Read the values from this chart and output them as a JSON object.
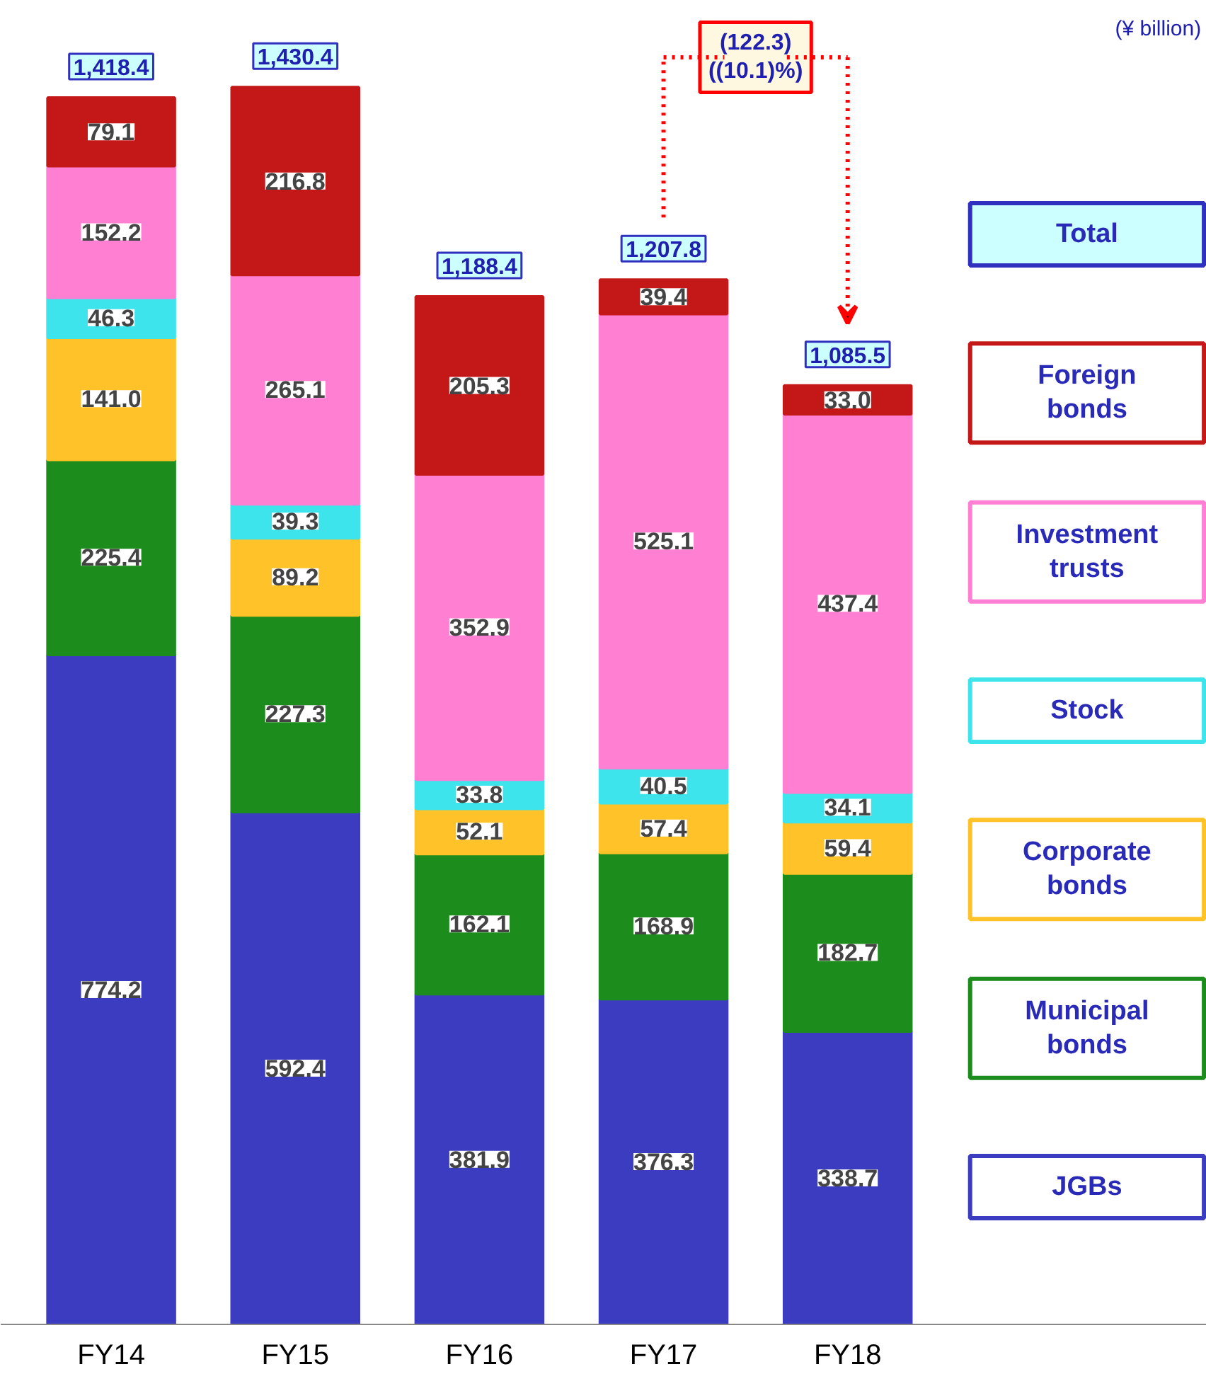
{
  "chart_data": {
    "type": "bar",
    "stacked": true,
    "legend": "right",
    "grid": false,
    "legend_title": "Total",
    "categories": [
      "FY14",
      "FY15",
      "FY16",
      "FY17",
      "FY18"
    ],
    "series": [
      {
        "name": "JGBs",
        "color": "#3c3cc0",
        "values": [
          774.2,
          592.4,
          381.9,
          376.3,
          338.7
        ],
        "value_labels": [
          "774.2",
          "592.4",
          "381.9",
          "376.3",
          "338.7"
        ]
      },
      {
        "name": "Municipal bonds",
        "color": "#1c8c1c",
        "values": [
          225.4,
          227.3,
          162.1,
          168.9,
          182.7
        ],
        "value_labels": [
          "225.4",
          "227.3",
          "162.1",
          "168.9",
          "182.7"
        ]
      },
      {
        "name": "Corporate bonds",
        "color": "#ffc228",
        "values": [
          141.0,
          89.2,
          52.1,
          57.4,
          59.4
        ],
        "value_labels": [
          "141.0",
          "89.2",
          "52.1",
          "57.4",
          "59.4"
        ]
      },
      {
        "name": "Stock",
        "color": "#3ee4ec",
        "values": [
          46.3,
          39.3,
          33.8,
          40.5,
          34.1
        ],
        "value_labels": [
          "46.3",
          "39.3",
          "33.8",
          "40.5",
          "34.1"
        ]
      },
      {
        "name": "Investment trusts",
        "color": "#ff7fd2",
        "values": [
          152.2,
          265.1,
          352.9,
          525.1,
          437.4
        ],
        "value_labels": [
          "152.2",
          "265.1",
          "352.9",
          "525.1",
          "437.4"
        ]
      },
      {
        "name": "Foreign bonds",
        "color": "#c41818",
        "values": [
          79.1,
          216.8,
          205.3,
          39.4,
          33.0
        ],
        "value_labels": [
          "79.1",
          "216.8",
          "205.3",
          "39.4",
          "33.0"
        ]
      }
    ],
    "totals": [
      "1,418.4",
      "1,430.4",
      "1,188.4",
      "1,207.8",
      "1,085.5"
    ],
    "annotations": [
      "(¥ billion)",
      "(122.3)\n((10.1)%)"
    ]
  }
}
